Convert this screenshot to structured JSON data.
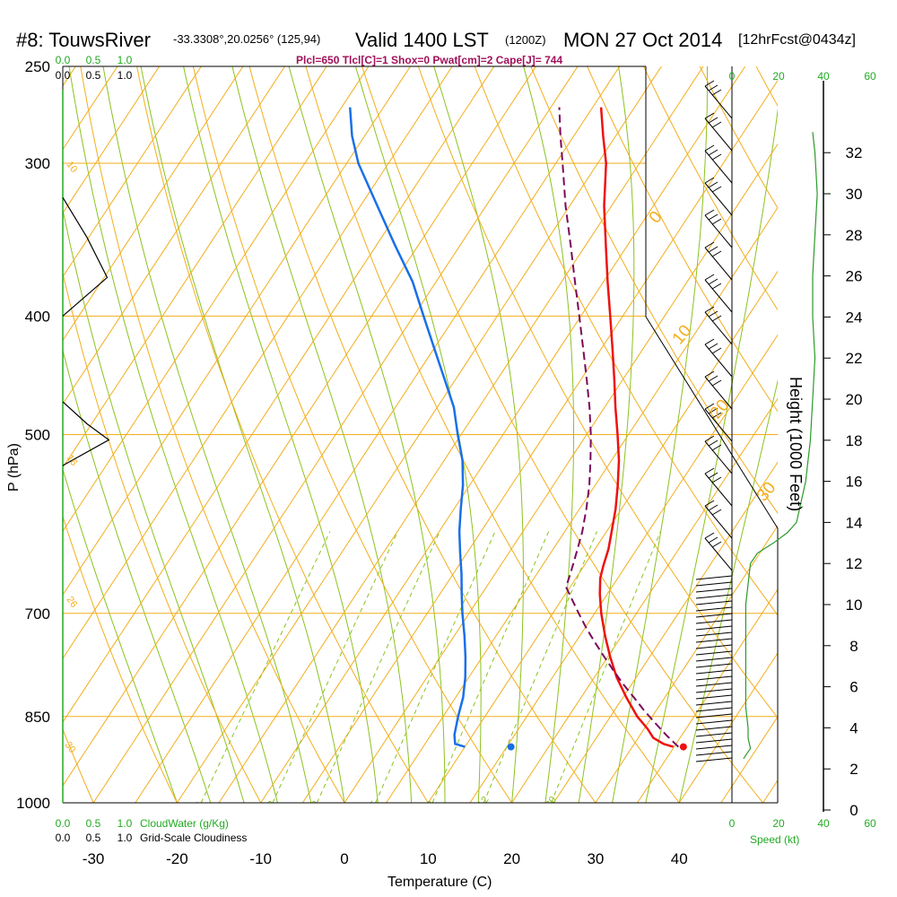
{
  "header": {
    "station": "#8: TouwsRiver",
    "coords": "-33.3308°,20.0256° (125,94)",
    "valid": "Valid 1400 LST",
    "zulu": "(1200Z)",
    "date": "MON 27 Oct 2014",
    "forecast": "[12hrFcst@0434z]",
    "indices": "Plcl=650 Tlcl[C]=1 Shox=0 Pwat[cm]=2 Cape[J]= 744"
  },
  "colors": {
    "isotherm": "#f2ae1c",
    "moist_adiabat": "#8cc21e",
    "mixing_ratio": "#8cc21e",
    "temperature": "#ee1111",
    "dewpoint": "#1a6fe8",
    "parcel": "#7a0a5a",
    "cloud": "#000000",
    "speed": "#2a9a2a",
    "header_indices": "#a0105a",
    "green_label": "#22aa22"
  },
  "chart_data": {
    "type": "line",
    "xlabel": "Temperature (C)",
    "ylabel": "P (hPa)",
    "y2label": "Height (1000 Feet)",
    "temp_ticks": [
      "-30",
      "-20",
      "-10",
      "0",
      "10",
      "20",
      "30",
      "40"
    ],
    "pressure_ticks": [
      "250",
      "300",
      "400",
      "500",
      "700",
      "850",
      "1000"
    ],
    "height_ticks": [
      "0",
      "2",
      "4",
      "6",
      "8",
      "10",
      "12",
      "14",
      "16",
      "18",
      "20",
      "22",
      "24",
      "26",
      "28",
      "30",
      "32"
    ],
    "dry_adiabat_labels": [
      "0",
      "10",
      "20",
      "30"
    ],
    "mixing_ratio_labels": [
      "1",
      "2",
      "3",
      "5",
      "8",
      "12",
      "20"
    ],
    "moist_adiabat_labels": [
      "10",
      "16",
      "26",
      "30"
    ],
    "cloudwater_ticks": [
      "0.0",
      "0.5",
      "1.0"
    ],
    "cloudwater_label": "CloudWater (g/Kg)",
    "cloudiness_ticks": [
      "0.0",
      "0.5",
      "1.0"
    ],
    "cloudiness_label": "Grid-Scale Cloudiness",
    "speed_ticks": [
      "0",
      "20",
      "40",
      "60"
    ],
    "speed_label": "Speed (kt)",
    "series": [
      {
        "key": "temperature",
        "p": [
          900,
          895,
          885,
          870,
          850,
          820,
          790,
          760,
          730,
          700,
          675,
          655,
          640,
          620,
          600,
          575,
          550,
          525,
          500,
          475,
          450,
          425,
          400,
          375,
          350,
          325,
          300,
          285,
          270
        ],
        "t": [
          34.9,
          33.5,
          31.8,
          30.4,
          28.2,
          25.4,
          22.7,
          20.3,
          18.0,
          15.8,
          14.1,
          12.9,
          12.3,
          11.6,
          10.6,
          9.3,
          7.7,
          5.9,
          3.7,
          1.3,
          -1.1,
          -3.7,
          -6.5,
          -9.5,
          -12.6,
          -15.9,
          -19.0,
          -21.5,
          -24.0
        ]
      },
      {
        "key": "dewpoint",
        "p": [
          900,
          895,
          880,
          850,
          820,
          790,
          760,
          730,
          700,
          675,
          650,
          625,
          600,
          575,
          550,
          525,
          500,
          475,
          450,
          425,
          400,
          375,
          350,
          325,
          300,
          285,
          270
        ],
        "t": [
          10.0,
          8.6,
          7.8,
          6.8,
          5.9,
          4.6,
          3.0,
          1.2,
          -0.8,
          -2.4,
          -4.0,
          -5.8,
          -7.6,
          -9.2,
          -10.8,
          -12.8,
          -15.4,
          -18.0,
          -21.4,
          -25.0,
          -28.8,
          -32.8,
          -37.8,
          -43.0,
          -48.6,
          -51.5,
          -54.0
        ]
      },
      {
        "key": "parcel",
        "p": [
          900,
          880,
          860,
          840,
          820,
          800,
          780,
          760,
          740,
          720,
          700,
          680,
          666,
          650,
          620,
          600,
          575,
          550,
          525,
          500,
          475,
          450,
          425,
          400,
          375,
          350,
          325,
          300,
          285,
          270
        ],
        "t": [
          35.5,
          33.1,
          30.8,
          28.5,
          26.3,
          24.0,
          21.8,
          19.6,
          17.4,
          15.2,
          13.1,
          11.0,
          9.5,
          9.0,
          7.9,
          7.1,
          5.8,
          4.3,
          2.5,
          0.5,
          -1.8,
          -4.4,
          -7.2,
          -10.2,
          -13.4,
          -16.8,
          -20.5,
          -24.2,
          -26.6,
          -29.0
        ]
      }
    ],
    "surface_points": [
      {
        "key": "temperature",
        "p": 900,
        "t": 36.1
      },
      {
        "key": "dewpoint",
        "p": 900,
        "t": 15.5
      }
    ],
    "wind_speed_profile": {
      "height_kft": [
        2.5,
        3.0,
        3.5,
        4.0,
        5.0,
        6.0,
        7.0,
        8.0,
        9.0,
        10.0,
        11.0,
        12.0,
        12.5,
        13.0,
        13.5,
        14.0,
        15.0,
        16.0,
        18.0,
        20.0,
        22.0,
        24.0,
        26.0,
        28.0,
        30.0,
        32.0,
        33.0
      ],
      "speed_kt": [
        5,
        8,
        7,
        7,
        6,
        6,
        6,
        6,
        6,
        6,
        7,
        8,
        11,
        18,
        24,
        28,
        30,
        32,
        34,
        35,
        36,
        35,
        35,
        36,
        37,
        36,
        35
      ]
    },
    "cloudiness_profile": {
      "p": [
        320,
        345,
        372,
        400
      ],
      "fraction": [
        0.0,
        0.3,
        0.55,
        0.0
      ]
    },
    "cloudwater_profile": {
      "p": [
        470,
        490,
        505,
        530
      ],
      "value": [
        0.0,
        0.3,
        0.57,
        0.0
      ]
    }
  }
}
